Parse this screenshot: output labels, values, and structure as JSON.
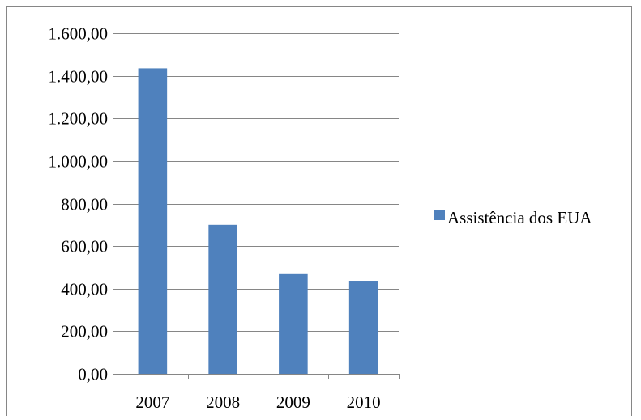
{
  "chart_data": {
    "type": "bar",
    "title": "",
    "xlabel": "",
    "ylabel": "",
    "categories": [
      "2007",
      "2008",
      "2009",
      "2010"
    ],
    "series": [
      {
        "name": "Assistência dos EUA",
        "values": [
          1435,
          700,
          472,
          437
        ],
        "color": "#4f81bd"
      }
    ],
    "ylim": [
      0,
      1600
    ],
    "y_ticks": [
      0,
      200,
      400,
      600,
      800,
      1000,
      1200,
      1400,
      1600
    ],
    "y_tick_labels": [
      "0,00",
      "200,00",
      "400,00",
      "600,00",
      "800,00",
      "1.000,00",
      "1.200,00",
      "1.400,00",
      "1.600,00"
    ],
    "grid": true,
    "legend": "right"
  }
}
